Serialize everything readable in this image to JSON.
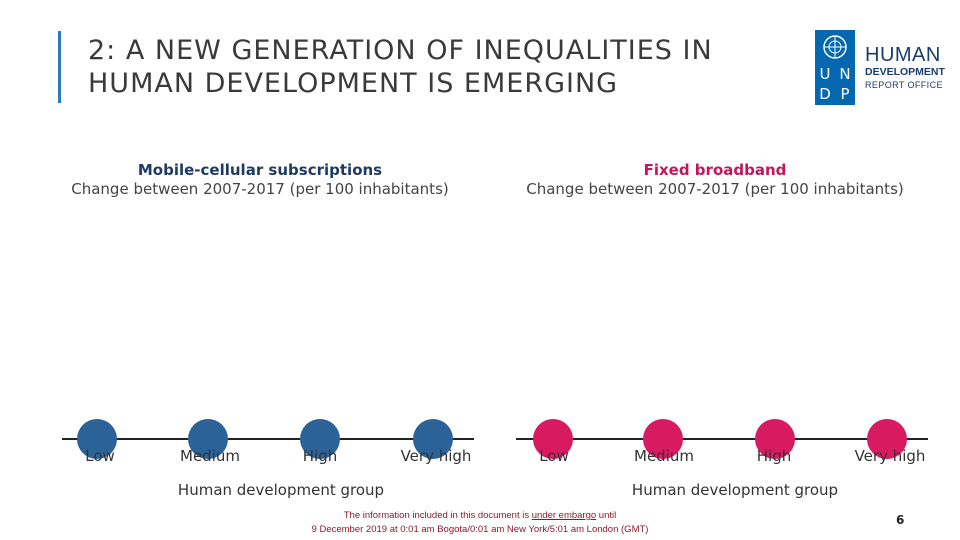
{
  "slide": {
    "title_line1": "2: A NEW GENERATION OF INEQUALITIES IN",
    "title_line2": "HUMAN DEVELOPMENT IS EMERGING",
    "page_number": "6"
  },
  "logo": {
    "letters": [
      "U",
      "N",
      "D",
      "P"
    ],
    "line1": "HUMAN",
    "line2": "DEVELOPMENT",
    "line3": "REPORT OFFICE",
    "brand_color": "#0468b1"
  },
  "embargo": {
    "line1_prefix": "The information included in this document is ",
    "line1_underlined": "under embargo",
    "line1_suffix": " until",
    "line2": "9 December 2019 at 0:01 am Bogota/0:01 am New York/5:01 am London (GMT)"
  },
  "chart_data": [
    {
      "type": "scatter",
      "title": "Mobile-cellular subscriptions",
      "subtitle": "Change between 2007-2017 (per 100 inhabitants)",
      "title_color": "#1f3b63",
      "categories": [
        "Low",
        "Medium",
        "High",
        "Very high"
      ],
      "xlabel": "Human development group",
      "marker_color": "#2b6399"
    },
    {
      "type": "scatter",
      "title": "Fixed broadband",
      "subtitle": "Change between 2007-2017 (per 100 inhabitants)",
      "title_color": "#c2185b",
      "categories": [
        "Low",
        "Medium",
        "High",
        "Very high"
      ],
      "xlabel": "Human development group",
      "marker_color": "#d81b60"
    }
  ]
}
